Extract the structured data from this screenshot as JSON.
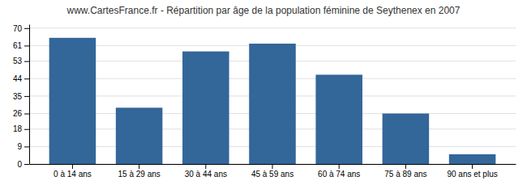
{
  "chart_data": {
    "type": "bar",
    "title": "www.CartesFrance.fr - Répartition par âge de la population féminine de Seythenex en 2007",
    "categories": [
      "0 à 14 ans",
      "15 à 29 ans",
      "30 à 44 ans",
      "45 à 59 ans",
      "60 à 74 ans",
      "75 à 89 ans",
      "90 ans et plus"
    ],
    "values": [
      65,
      29,
      58,
      62,
      46,
      26,
      5
    ],
    "color": "#336699",
    "ylim": [
      0,
      72
    ],
    "yticks": [
      0,
      9,
      18,
      26,
      35,
      44,
      53,
      61,
      70
    ],
    "grid": true
  }
}
